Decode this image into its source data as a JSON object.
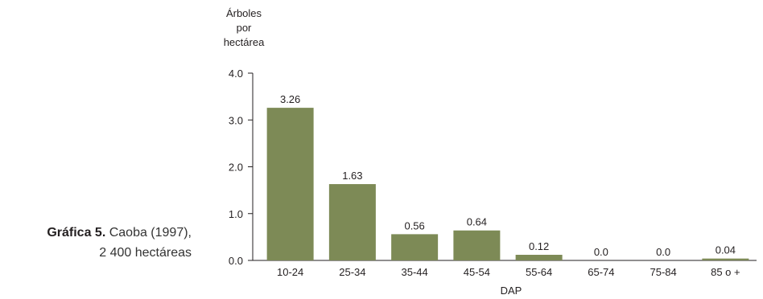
{
  "caption": {
    "bold": "Gráfica 5.",
    "line1_rest": " Caoba (1997),",
    "line2": "2 400 hectáreas"
  },
  "chart_data": {
    "type": "bar",
    "ylabel_lines": [
      "Árboles",
      "por",
      "hectárea"
    ],
    "xlabel": "DAP",
    "categories": [
      "10-24",
      "25-34",
      "35-44",
      "45-54",
      "55-64",
      "65-74",
      "75-84",
      "85 o +"
    ],
    "values": [
      3.26,
      1.63,
      0.56,
      0.64,
      0.12,
      0.0,
      0.0,
      0.04
    ],
    "value_labels": [
      "3.26",
      "1.63",
      "0.56",
      "0.64",
      "0.12",
      "0.0",
      "0.0",
      "0.04"
    ],
    "yticks": [
      0,
      1,
      2,
      3,
      4
    ],
    "ytick_labels": [
      "0.0",
      "1.0",
      "2.0",
      "3.0",
      "4.0"
    ],
    "ylim": [
      0,
      4
    ],
    "grid": false,
    "bar_color": "#7d8a56",
    "axis_color": "#231f20"
  }
}
